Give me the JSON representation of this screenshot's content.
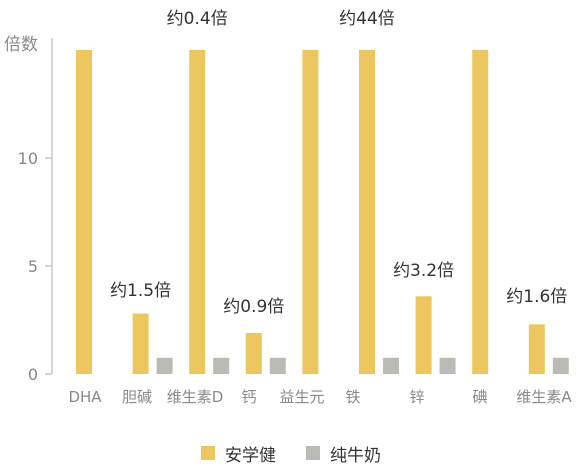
{
  "chart_data": {
    "type": "bar",
    "ylabel": "倍数",
    "ylim": [
      0,
      15
    ],
    "yticks": [
      0,
      5,
      10
    ],
    "grid": false,
    "categories": [
      "DHA",
      "胆碱",
      "维生素D",
      "钙",
      "益生元",
      "铁",
      "锌",
      "碘",
      "维生素A"
    ],
    "series": [
      {
        "name": "安学健",
        "color": "#ecc75f",
        "values": [
          15,
          2.8,
          15,
          1.9,
          15,
          15,
          3.6,
          15,
          2.3
        ]
      },
      {
        "name": "纯牛奶",
        "color": "#bcbab4",
        "values": [
          0,
          0.75,
          0.75,
          0.75,
          0,
          0.75,
          0.75,
          0,
          0.75
        ]
      }
    ],
    "annotations": [
      "",
      "约1.5倍",
      "约0.4倍",
      "约0.9倍",
      "",
      "约44倍",
      "约3.2倍",
      "",
      "约1.6倍"
    ],
    "legend_position": "bottom"
  }
}
